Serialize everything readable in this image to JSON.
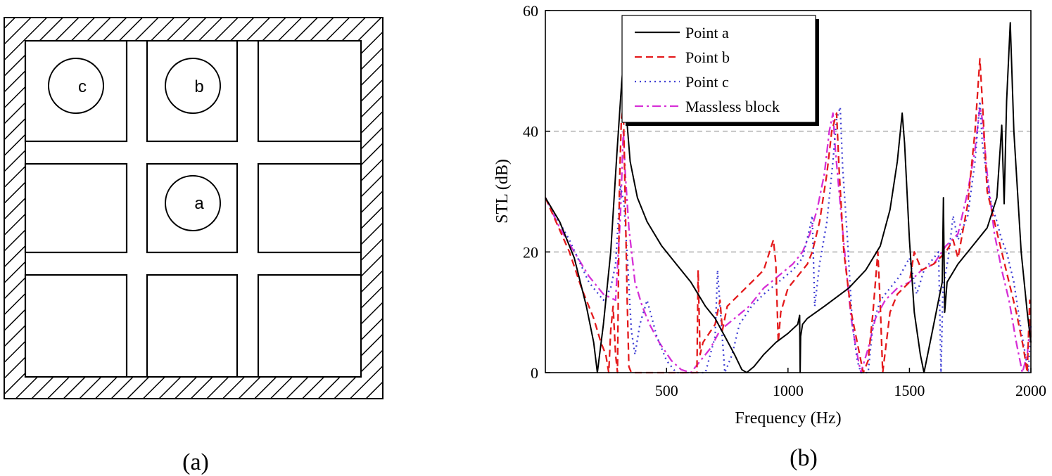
{
  "panel_a": {
    "label": "(a)",
    "points": [
      {
        "id": "c",
        "label": "c"
      },
      {
        "id": "b",
        "label": "b"
      },
      {
        "id": "a",
        "label": "a"
      }
    ]
  },
  "panel_b": {
    "label": "(b)"
  },
  "chart_data": {
    "type": "line",
    "title": "",
    "xlabel": "Frequency (Hz)",
    "ylabel": "STL (dB)",
    "xlim": [
      1,
      2000
    ],
    "ylim": [
      0,
      60
    ],
    "xticks": [
      500,
      1000,
      1500,
      2000
    ],
    "yticks": [
      0,
      20,
      40,
      60
    ],
    "grid": "horizontal dashed at 20 and 40",
    "legend": "top-left",
    "series": [
      {
        "name": "Point a",
        "color": "#000000",
        "style": "solid",
        "points": [
          [
            1,
            29
          ],
          [
            60,
            25
          ],
          [
            120,
            19
          ],
          [
            170,
            11
          ],
          [
            200,
            5
          ],
          [
            215,
            0
          ],
          [
            240,
            8
          ],
          [
            270,
            20
          ],
          [
            295,
            36
          ],
          [
            315,
            48
          ],
          [
            322,
            51
          ],
          [
            330,
            45
          ],
          [
            350,
            35
          ],
          [
            380,
            29
          ],
          [
            420,
            25
          ],
          [
            480,
            21
          ],
          [
            540,
            18
          ],
          [
            600,
            15
          ],
          [
            660,
            11
          ],
          [
            700,
            9
          ],
          [
            740,
            6
          ],
          [
            780,
            3
          ],
          [
            810,
            0.5
          ],
          [
            830,
            0
          ],
          [
            860,
            1
          ],
          [
            900,
            3
          ],
          [
            950,
            5
          ],
          [
            1000,
            6.5
          ],
          [
            1040,
            8
          ],
          [
            1048,
            9.5
          ],
          [
            1050,
            0
          ],
          [
            1052,
            6
          ],
          [
            1060,
            8
          ],
          [
            1080,
            9
          ],
          [
            1150,
            11
          ],
          [
            1250,
            14
          ],
          [
            1320,
            17
          ],
          [
            1380,
            21
          ],
          [
            1420,
            27
          ],
          [
            1450,
            35
          ],
          [
            1470,
            43
          ],
          [
            1480,
            38
          ],
          [
            1500,
            22
          ],
          [
            1520,
            10
          ],
          [
            1545,
            3
          ],
          [
            1560,
            0
          ],
          [
            1590,
            6
          ],
          [
            1620,
            12
          ],
          [
            1635,
            15
          ],
          [
            1640,
            29
          ],
          [
            1645,
            10
          ],
          [
            1655,
            15
          ],
          [
            1700,
            18
          ],
          [
            1760,
            21
          ],
          [
            1820,
            24
          ],
          [
            1860,
            29
          ],
          [
            1880,
            41
          ],
          [
            1890,
            28
          ],
          [
            1900,
            45
          ],
          [
            1915,
            58
          ],
          [
            1930,
            40
          ],
          [
            1960,
            20
          ],
          [
            1985,
            10
          ],
          [
            2000,
            5
          ]
        ]
      },
      {
        "name": "Point b",
        "color": "#e41a1c",
        "style": "dashed",
        "points": [
          [
            1,
            29
          ],
          [
            100,
            20
          ],
          [
            150,
            14
          ],
          [
            200,
            9
          ],
          [
            230,
            5
          ],
          [
            250,
            3
          ],
          [
            262,
            0
          ],
          [
            270,
            7
          ],
          [
            280,
            11
          ],
          [
            290,
            3
          ],
          [
            298,
            0
          ],
          [
            306,
            31
          ],
          [
            314,
            42
          ],
          [
            322,
            44
          ],
          [
            330,
            28
          ],
          [
            338,
            12
          ],
          [
            345,
            1
          ],
          [
            355,
            0
          ],
          [
            400,
            0
          ],
          [
            500,
            0
          ],
          [
            560,
            0
          ],
          [
            600,
            0
          ],
          [
            625,
            0
          ],
          [
            630,
            17
          ],
          [
            638,
            3
          ],
          [
            650,
            5
          ],
          [
            700,
            8
          ],
          [
            720,
            12
          ],
          [
            730,
            7
          ],
          [
            750,
            11
          ],
          [
            800,
            13
          ],
          [
            850,
            15
          ],
          [
            900,
            17
          ],
          [
            940,
            22
          ],
          [
            950,
            18
          ],
          [
            960,
            5
          ],
          [
            970,
            10
          ],
          [
            1000,
            14
          ],
          [
            1040,
            16
          ],
          [
            1080,
            18
          ],
          [
            1100,
            20
          ],
          [
            1130,
            25
          ],
          [
            1160,
            33
          ],
          [
            1180,
            40
          ],
          [
            1200,
            43
          ],
          [
            1210,
            34
          ],
          [
            1230,
            20
          ],
          [
            1260,
            10
          ],
          [
            1290,
            4
          ],
          [
            1310,
            0
          ],
          [
            1330,
            2
          ],
          [
            1350,
            10
          ],
          [
            1370,
            20
          ],
          [
            1380,
            11
          ],
          [
            1390,
            0
          ],
          [
            1420,
            10
          ],
          [
            1450,
            13
          ],
          [
            1500,
            15
          ],
          [
            1520,
            20
          ],
          [
            1550,
            17
          ],
          [
            1600,
            18
          ],
          [
            1650,
            20
          ],
          [
            1680,
            22
          ],
          [
            1700,
            19
          ],
          [
            1740,
            28
          ],
          [
            1770,
            40
          ],
          [
            1790,
            52
          ],
          [
            1800,
            45
          ],
          [
            1820,
            30
          ],
          [
            1850,
            25
          ],
          [
            1880,
            20
          ],
          [
            1910,
            15
          ],
          [
            1940,
            10
          ],
          [
            1970,
            4
          ],
          [
            1985,
            0
          ],
          [
            1995,
            12
          ],
          [
            2000,
            5
          ]
        ]
      },
      {
        "name": "Point c",
        "color": "#3f3fd4",
        "style": "dotted",
        "points": [
          [
            1,
            29
          ],
          [
            100,
            22
          ],
          [
            180,
            15
          ],
          [
            240,
            12
          ],
          [
            270,
            14
          ],
          [
            290,
            18
          ],
          [
            310,
            31
          ],
          [
            325,
            28
          ],
          [
            340,
            18
          ],
          [
            355,
            7
          ],
          [
            370,
            3
          ],
          [
            390,
            8
          ],
          [
            420,
            12
          ],
          [
            460,
            6
          ],
          [
            500,
            2
          ],
          [
            540,
            0
          ],
          [
            600,
            0
          ],
          [
            660,
            0
          ],
          [
            700,
            6
          ],
          [
            710,
            17
          ],
          [
            720,
            11
          ],
          [
            740,
            0
          ],
          [
            770,
            3
          ],
          [
            800,
            8
          ],
          [
            850,
            11
          ],
          [
            900,
            13
          ],
          [
            960,
            15
          ],
          [
            1020,
            17
          ],
          [
            1060,
            19
          ],
          [
            1090,
            24
          ],
          [
            1100,
            26
          ],
          [
            1110,
            11
          ],
          [
            1130,
            18
          ],
          [
            1160,
            25
          ],
          [
            1185,
            35
          ],
          [
            1200,
            42
          ],
          [
            1215,
            44
          ],
          [
            1225,
            34
          ],
          [
            1245,
            22
          ],
          [
            1265,
            8
          ],
          [
            1285,
            2
          ],
          [
            1300,
            0
          ],
          [
            1330,
            0
          ],
          [
            1350,
            8
          ],
          [
            1380,
            12
          ],
          [
            1420,
            14
          ],
          [
            1460,
            16
          ],
          [
            1500,
            19
          ],
          [
            1530,
            13
          ],
          [
            1560,
            17
          ],
          [
            1600,
            19
          ],
          [
            1620,
            20
          ],
          [
            1630,
            0
          ],
          [
            1638,
            14
          ],
          [
            1660,
            19
          ],
          [
            1680,
            26
          ],
          [
            1700,
            22
          ],
          [
            1740,
            26
          ],
          [
            1770,
            35
          ],
          [
            1790,
            45
          ],
          [
            1800,
            38
          ],
          [
            1830,
            29
          ],
          [
            1860,
            25
          ],
          [
            1880,
            22
          ],
          [
            1900,
            20
          ],
          [
            1930,
            15
          ],
          [
            1960,
            7
          ],
          [
            1990,
            0
          ],
          [
            2000,
            8
          ]
        ]
      },
      {
        "name": "Massless block",
        "color": "#d62fd6",
        "style": "dashdot",
        "points": [
          [
            1,
            29
          ],
          [
            60,
            24
          ],
          [
            120,
            20
          ],
          [
            180,
            16
          ],
          [
            240,
            13
          ],
          [
            290,
            12
          ],
          [
            310,
            26
          ],
          [
            322,
            40
          ],
          [
            330,
            33
          ],
          [
            345,
            24
          ],
          [
            370,
            15
          ],
          [
            400,
            11
          ],
          [
            430,
            8
          ],
          [
            470,
            5
          ],
          [
            520,
            2
          ],
          [
            560,
            0.5
          ],
          [
            600,
            0
          ],
          [
            640,
            2
          ],
          [
            680,
            4
          ],
          [
            720,
            7
          ],
          [
            780,
            9
          ],
          [
            840,
            11
          ],
          [
            900,
            14
          ],
          [
            960,
            16
          ],
          [
            1020,
            18
          ],
          [
            1060,
            20
          ],
          [
            1090,
            23
          ],
          [
            1120,
            27
          ],
          [
            1150,
            33
          ],
          [
            1170,
            40
          ],
          [
            1185,
            43
          ],
          [
            1195,
            37
          ],
          [
            1215,
            28
          ],
          [
            1240,
            17
          ],
          [
            1260,
            9
          ],
          [
            1280,
            4
          ],
          [
            1300,
            0
          ],
          [
            1330,
            4
          ],
          [
            1360,
            9
          ],
          [
            1400,
            12
          ],
          [
            1450,
            14
          ],
          [
            1500,
            15
          ],
          [
            1550,
            17
          ],
          [
            1600,
            18
          ],
          [
            1650,
            21
          ],
          [
            1700,
            23
          ],
          [
            1740,
            30
          ],
          [
            1770,
            37
          ],
          [
            1790,
            44
          ],
          [
            1800,
            42
          ],
          [
            1820,
            33
          ],
          [
            1850,
            23
          ],
          [
            1880,
            17
          ],
          [
            1910,
            12
          ],
          [
            1940,
            5
          ],
          [
            1965,
            0
          ],
          [
            1985,
            3
          ],
          [
            2000,
            9
          ]
        ]
      }
    ]
  }
}
